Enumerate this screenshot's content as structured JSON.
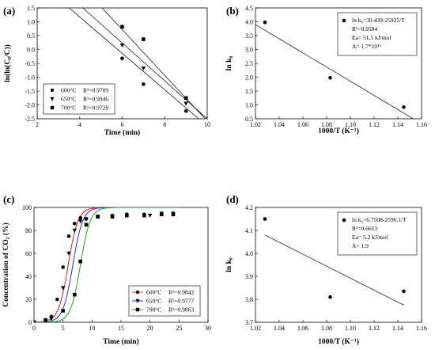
{
  "chart_data": [
    {
      "panel": "(a)",
      "type": "scatter",
      "xlabel": "Time (min)",
      "ylabel": "ln(ln(C₀/C))",
      "xlim": [
        2,
        10
      ],
      "ylim": [
        -2.5,
        1.5
      ],
      "xticks": [
        2,
        4,
        6,
        8,
        10
      ],
      "yticks": [
        -2.5,
        -2.0,
        -1.5,
        -1.0,
        -0.5,
        0.0,
        0.5,
        1.0,
        1.5
      ],
      "tick_labels_x": [
        "2",
        "4",
        "6",
        "8",
        "10"
      ],
      "tick_labels_y": [
        "-2.5",
        "-2.0",
        "-1.5",
        "-1.0",
        "-0.5",
        "0.0",
        "0.5",
        "1.0",
        "1.5"
      ],
      "legend_position": "bottom-left",
      "series": [
        {
          "name": "600°C",
          "r2": "R²=0.9709",
          "marker": "circle",
          "points": [
            [
              6,
              -0.32
            ],
            [
              7,
              -1.25
            ],
            [
              9,
              -2.22
            ]
          ],
          "fit": [
            [
              3.5,
              1.5
            ],
            [
              9.6,
              -2.5
            ]
          ]
        },
        {
          "name": "650°C",
          "r2": "R²=0.9946",
          "marker": "triangle-down",
          "points": [
            [
              6,
              0.15
            ],
            [
              7,
              -0.68
            ],
            [
              9,
              -1.95
            ]
          ],
          "fit": [
            [
              4.15,
              1.5
            ],
            [
              10.0,
              -2.5
            ]
          ]
        },
        {
          "name": "700°C",
          "r2": "R²=0.9728",
          "marker": "square",
          "points": [
            [
              6,
              0.82
            ],
            [
              7,
              0.37
            ],
            [
              9,
              -1.75
            ]
          ],
          "fit": [
            [
              5.05,
              1.5
            ],
            [
              9.9,
              -2.5
            ]
          ]
        }
      ]
    },
    {
      "panel": "(b)",
      "type": "scatter",
      "xlabel": "1000/T (K⁻¹)",
      "ylabel": "ln k₀",
      "xlim": [
        1.02,
        1.16
      ],
      "ylim": [
        0.5,
        4.5
      ],
      "xticks": [
        1.02,
        1.04,
        1.06,
        1.08,
        1.1,
        1.12,
        1.14,
        1.16
      ],
      "yticks": [
        0.5,
        1.0,
        1.5,
        2.0,
        2.5,
        3.0,
        3.5,
        4.0,
        4.5
      ],
      "tick_labels_x": [
        "1.02",
        "1.04",
        "1.06",
        "1.08",
        "1.10",
        "1.12",
        "1.14",
        "1.16"
      ],
      "tick_labels_y": [
        "0.5",
        "1.0",
        "1.5",
        "2.0",
        "2.5",
        "3.0",
        "3.5",
        "4.0",
        "4.5"
      ],
      "legend_position": "top-right",
      "legend_lines": [
        "ln k₀=30.439-25925/T",
        "R²=0.9584",
        "Ea= 51.5 kJ/mol",
        "A= 1.7*10¹³"
      ],
      "points": [
        [
          1.028,
          3.98
        ],
        [
          1.083,
          1.98
        ],
        [
          1.145,
          0.92
        ]
      ],
      "fit": [
        [
          1.02,
          3.9
        ],
        [
          1.153,
          0.5
        ]
      ]
    },
    {
      "panel": "(c)",
      "type": "line",
      "xlabel": "Time (min)",
      "ylabel": "Concentration of CO₂ (%)",
      "xlim": [
        0,
        30
      ],
      "ylim": [
        0,
        100
      ],
      "xticks": [
        0,
        5,
        10,
        15,
        20,
        25,
        30
      ],
      "yticks": [
        0,
        20,
        40,
        60,
        80,
        100
      ],
      "tick_labels_x": [
        "0",
        "5",
        "10",
        "15",
        "20",
        "25",
        "30"
      ],
      "tick_labels_y": [
        "0",
        "20",
        "40",
        "60",
        "80",
        "100"
      ],
      "legend_position": "bottom-right",
      "series": [
        {
          "name": "600°C",
          "r2": "R²=0.9842",
          "color": "#e02020",
          "marker": "circle",
          "fit_center": 5.9,
          "fit_width": 0.85,
          "points": [
            [
              0,
              0
            ],
            [
              2,
              1
            ],
            [
              3,
              5
            ],
            [
              4,
              20
            ],
            [
              5,
              48
            ],
            [
              6,
              75
            ],
            [
              7,
              86
            ],
            [
              8,
              91
            ],
            [
              9,
              90
            ],
            [
              11,
              92
            ],
            [
              13.5,
              93
            ],
            [
              16,
              94
            ],
            [
              19,
              94
            ],
            [
              22,
              95
            ],
            [
              24,
              95
            ]
          ]
        },
        {
          "name": "650°C",
          "r2": "R²=0.9777",
          "color": "#2030d0",
          "marker": "triangle-down",
          "fit_center": 6.7,
          "fit_width": 0.85,
          "points": [
            [
              0,
              0
            ],
            [
              2,
              1
            ],
            [
              3,
              3
            ],
            [
              5,
              30
            ],
            [
              6,
              60
            ],
            [
              7,
              80
            ],
            [
              8,
              88
            ],
            [
              9,
              90
            ],
            [
              11,
              92
            ],
            [
              13.5,
              92
            ],
            [
              16,
              93
            ],
            [
              20,
              93
            ],
            [
              24,
              94
            ]
          ]
        },
        {
          "name": "700°C",
          "r2": "R²=0.9863",
          "color": "#20a020",
          "marker": "square",
          "fit_center": 8.0,
          "fit_width": 0.85,
          "points": [
            [
              0,
              0
            ],
            [
              2,
              2
            ],
            [
              5,
              10
            ],
            [
              7,
              24
            ],
            [
              8,
              53
            ],
            [
              9,
              85
            ],
            [
              11,
              92
            ],
            [
              13.5,
              92
            ],
            [
              16,
              93
            ],
            [
              19,
              93
            ],
            [
              22,
              94
            ],
            [
              24,
              94
            ]
          ]
        }
      ]
    },
    {
      "panel": "(d)",
      "type": "scatter",
      "xlabel": "1000/T (K⁻¹)",
      "ylabel": "ln k₀",
      "xlim": [
        1.02,
        1.16
      ],
      "ylim": [
        3.7,
        4.2
      ],
      "xticks": [
        1.02,
        1.04,
        1.06,
        1.08,
        1.1,
        1.12,
        1.14,
        1.16
      ],
      "yticks": [
        3.7,
        3.8,
        3.9,
        4.0,
        4.1,
        4.2
      ],
      "tick_labels_x": [
        "1.02",
        "1.04",
        "1.06",
        "1.08",
        "1.10",
        "1.12",
        "1.14",
        "1.16"
      ],
      "tick_labels_y": [
        "3.7",
        "3.8",
        "3.9",
        "4.0",
        "4.1",
        "4.2"
      ],
      "legend_position": "top-right",
      "legend_lines": [
        "ln k₀=6.7508-2596.1/T",
        "R²=0.6613",
        "Ea= 5.2 kJ/mol",
        "A= 1.9"
      ],
      "points": [
        [
          1.028,
          4.15
        ],
        [
          1.083,
          3.81
        ],
        [
          1.145,
          3.835
        ]
      ],
      "fit": [
        [
          1.028,
          4.08
        ],
        [
          1.145,
          3.775
        ]
      ]
    }
  ]
}
